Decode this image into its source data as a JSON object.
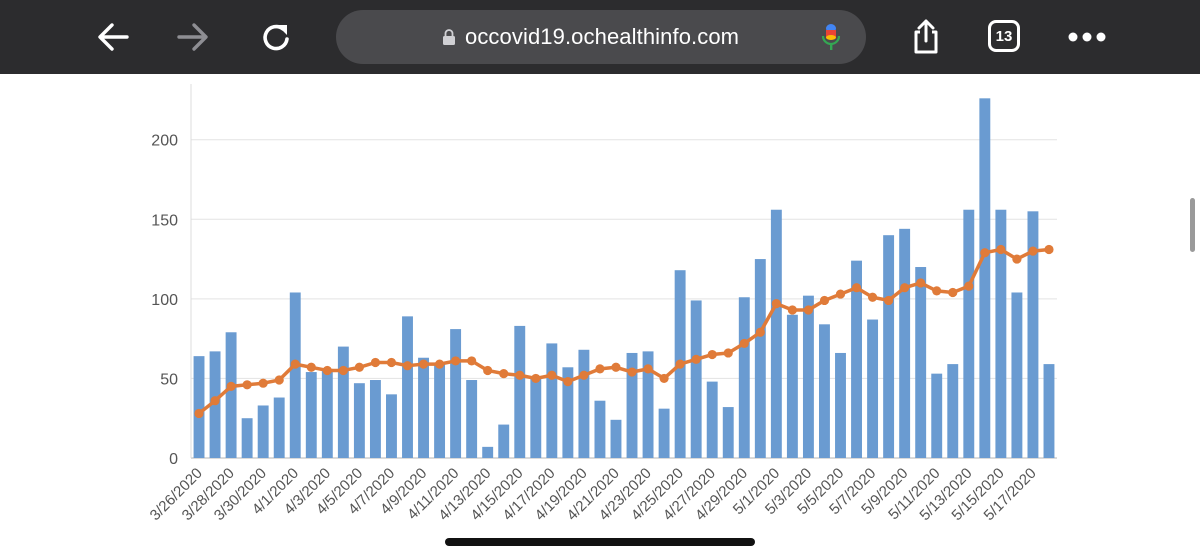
{
  "browser": {
    "url": "occovid19.ochealthinfo.com",
    "tab_count": "13",
    "icons": {
      "back": "back-arrow-icon",
      "forward": "forward-arrow-icon",
      "reload": "reload-icon",
      "lock": "lock-icon",
      "mic": "microphone-icon",
      "share": "share-icon",
      "tabs": "tabs-icon",
      "more": "more-icon"
    }
  },
  "chart_data": {
    "type": "bar",
    "categories": [
      "3/26/2020",
      "3/27/2020",
      "3/28/2020",
      "3/29/2020",
      "3/30/2020",
      "3/31/2020",
      "4/1/2020",
      "4/2/2020",
      "4/3/2020",
      "4/4/2020",
      "4/5/2020",
      "4/6/2020",
      "4/7/2020",
      "4/8/2020",
      "4/9/2020",
      "4/10/2020",
      "4/11/2020",
      "4/12/2020",
      "4/13/2020",
      "4/14/2020",
      "4/15/2020",
      "4/16/2020",
      "4/17/2020",
      "4/18/2020",
      "4/19/2020",
      "4/20/2020",
      "4/21/2020",
      "4/22/2020",
      "4/23/2020",
      "4/24/2020",
      "4/25/2020",
      "4/26/2020",
      "4/27/2020",
      "4/28/2020",
      "4/29/2020",
      "4/30/2020",
      "5/1/2020",
      "5/2/2020",
      "5/3/2020",
      "5/4/2020",
      "5/5/2020",
      "5/6/2020",
      "5/7/2020",
      "5/8/2020",
      "5/9/2020",
      "5/10/2020",
      "5/11/2020",
      "5/12/2020",
      "5/13/2020",
      "5/14/2020",
      "5/15/2020",
      "5/16/2020",
      "5/17/2020",
      "5/18/2020"
    ],
    "tick_labels": [
      "3/26/2020",
      "3/28/2020",
      "3/30/2020",
      "4/1/2020",
      "4/3/2020",
      "4/5/2020",
      "4/7/2020",
      "4/9/2020",
      "4/11/2020",
      "4/13/2020",
      "4/15/2020",
      "4/17/2020",
      "4/19/2020",
      "4/21/2020",
      "4/23/2020",
      "4/25/2020",
      "4/27/2020",
      "4/29/2020",
      "5/1/2020",
      "5/3/2020",
      "5/5/2020",
      "5/7/2020",
      "5/9/2020",
      "5/11/2020",
      "5/13/2020",
      "5/15/2020",
      "5/17/2020"
    ],
    "series": [
      {
        "type": "bar",
        "color": "#6a9bd1",
        "values": [
          64,
          67,
          79,
          25,
          33,
          38,
          104,
          54,
          56,
          70,
          47,
          49,
          40,
          89,
          63,
          59,
          81,
          49,
          7,
          21,
          83,
          50,
          72,
          57,
          68,
          36,
          24,
          66,
          67,
          31,
          118,
          99,
          48,
          32,
          101,
          125,
          156,
          90,
          102,
          84,
          66,
          124,
          87,
          140,
          144,
          120,
          53,
          59,
          156,
          226,
          156,
          104,
          155,
          59
        ]
      },
      {
        "type": "line",
        "color": "#e07b39",
        "values": [
          28,
          36,
          45,
          46,
          47,
          49,
          59,
          57,
          55,
          55,
          57,
          60,
          60,
          58,
          59,
          59,
          61,
          61,
          55,
          53,
          52,
          50,
          52,
          48,
          52,
          56,
          57,
          54,
          56,
          50,
          59,
          62,
          65,
          66,
          72,
          79,
          97,
          93,
          93,
          99,
          103,
          107,
          101,
          99,
          107,
          110,
          105,
          104,
          108,
          129,
          131,
          125,
          130,
          131
        ]
      }
    ],
    "y_ticks": [
      0,
      50,
      100,
      150,
      200
    ],
    "ylim": [
      0,
      235
    ],
    "grid": true,
    "legend": "none"
  }
}
